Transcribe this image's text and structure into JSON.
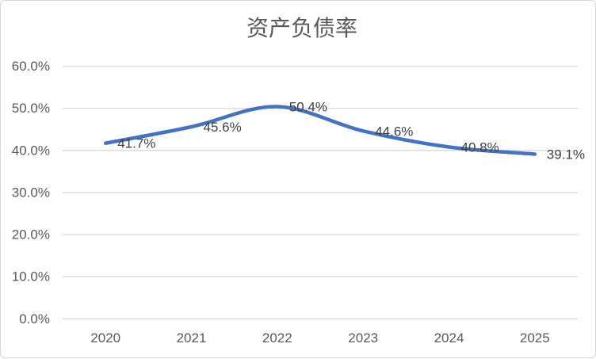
{
  "chart_data": {
    "type": "line",
    "title": "资产负债率",
    "categories": [
      "2020",
      "2021",
      "2022",
      "2023",
      "2024",
      "2025"
    ],
    "series": [
      {
        "name": "资产负债率",
        "values": [
          41.7,
          45.6,
          50.4,
          44.6,
          40.8,
          39.1
        ]
      }
    ],
    "data_labels": [
      "41.7%",
      "45.6%",
      "50.4%",
      "44.6%",
      "40.8%",
      "39.1%"
    ],
    "xlabel": "",
    "ylabel": "",
    "ylim": [
      0,
      60
    ],
    "y_ticks": [
      0,
      10,
      20,
      30,
      40,
      50,
      60
    ],
    "y_tick_labels": [
      "0.0%",
      "10.0%",
      "20.0%",
      "30.0%",
      "40.0%",
      "50.0%",
      "60.0%"
    ],
    "grid": true,
    "legend": "none",
    "smooth": true,
    "colors": {
      "line": "#4472C4",
      "gridline": "#D9D9D9",
      "axis_line": "#D9D9D9",
      "axis_text": "#595959",
      "data_label_text": "#404040",
      "title_text": "#595959",
      "border": "#D9D9D9",
      "background": "#FFFFFF"
    }
  }
}
